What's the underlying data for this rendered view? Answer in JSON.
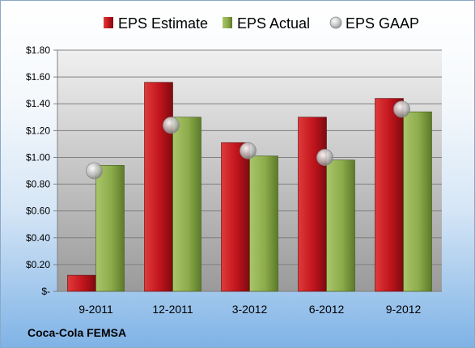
{
  "company": "Coca-Cola FEMSA",
  "colors": {
    "estimate": "#c0141c",
    "actual": "#8cab4a",
    "gaap": "#b8b8b8",
    "plot_bg_top": "#f0f0f0",
    "plot_bg_bottom": "#9a9a9a"
  },
  "chart_data": {
    "type": "bar",
    "title": "",
    "xlabel": "",
    "ylabel": "",
    "ylim": [
      0,
      1.8
    ],
    "y_ticks": [
      "$1.80",
      "$1.60",
      "$1.40",
      "$1.20",
      "$1.00",
      "$0.80",
      "$0.60",
      "$0.40",
      "$0.20",
      "$-"
    ],
    "categories": [
      "9-2011",
      "12-2011",
      "3-2012",
      "6-2012",
      "9-2012"
    ],
    "series": [
      {
        "name": "EPS Estimate",
        "type": "bar",
        "values": [
          0.12,
          1.56,
          1.11,
          1.3,
          1.44
        ]
      },
      {
        "name": "EPS Actual",
        "type": "bar",
        "values": [
          0.94,
          1.3,
          1.01,
          0.98,
          1.34
        ]
      },
      {
        "name": "EPS GAAP",
        "type": "scatter",
        "values": [
          0.9,
          1.24,
          1.05,
          1.0,
          1.36
        ]
      }
    ],
    "legend_position": "top",
    "grid": true
  }
}
